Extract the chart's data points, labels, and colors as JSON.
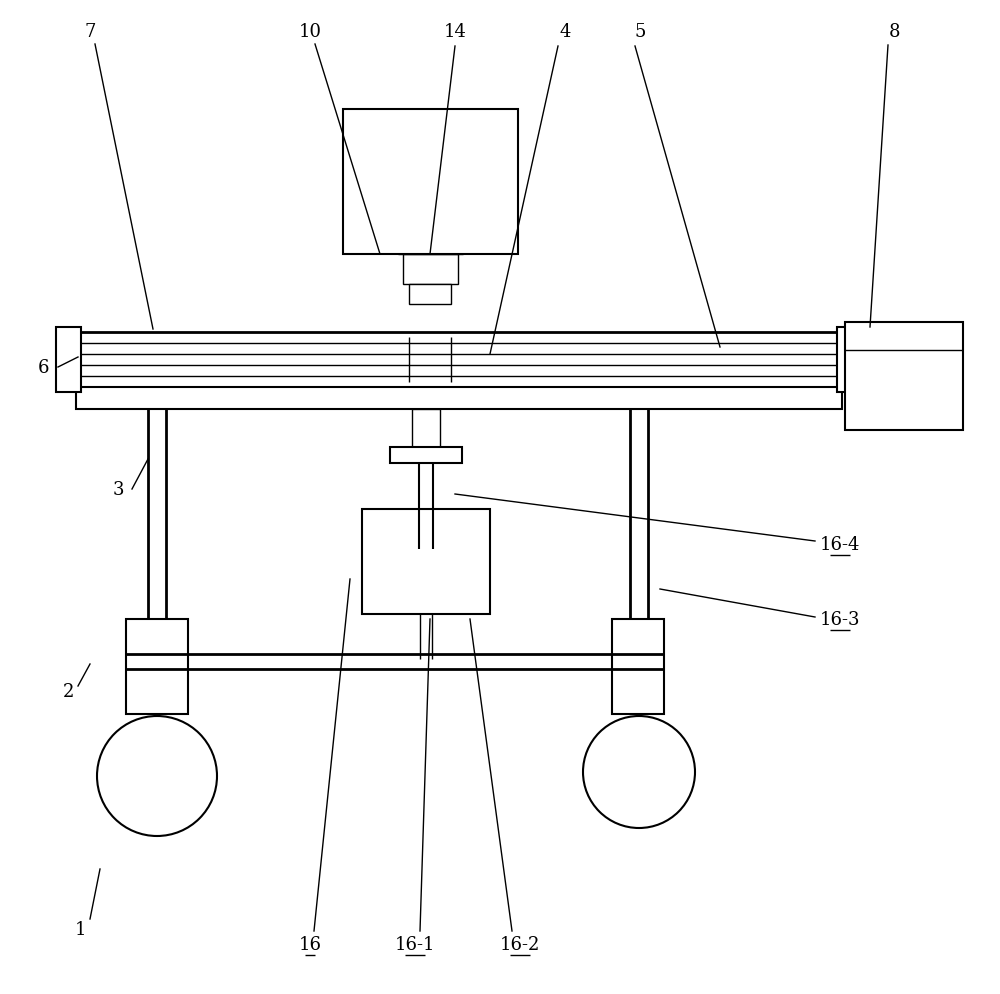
{
  "bg_color": "#ffffff",
  "line_color": "#000000",
  "lw_thin": 1.0,
  "lw_med": 1.5,
  "lw_thick": 2.0,
  "fig_width": 10.0,
  "fig_height": 9.95
}
